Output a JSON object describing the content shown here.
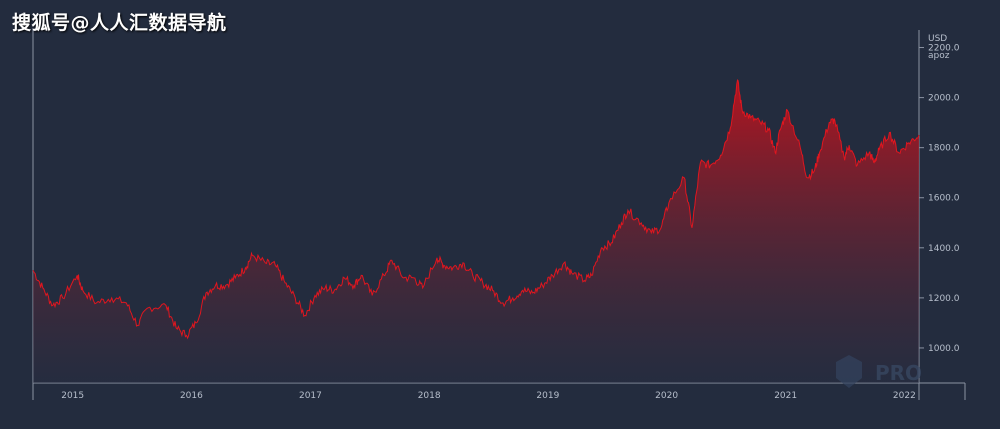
{
  "watermark": {
    "text": "搜狐号@人人汇数据导航"
  },
  "colors": {
    "background": "#232c3e",
    "line": "#e0161f",
    "fill_top": "#b5141f",
    "fill_bottom": "#2a2e42",
    "axis": "#8b93a3",
    "text": "#b7bfcc"
  },
  "chart_data": {
    "type": "area",
    "unit_line1": "USD",
    "unit_line2": "apoz",
    "y_ticks": [
      "1000.0",
      "1200.0",
      "1400.0",
      "1600.0",
      "1800.0",
      "2000.0",
      "2200.0"
    ],
    "ylim": [
      860,
      2270
    ],
    "x_tick_labels": [
      "2015",
      "2016",
      "2017",
      "2018",
      "2019",
      "2020",
      "2021",
      "2022"
    ],
    "xlim": [
      "2014-09-01",
      "2022-02-15"
    ],
    "grid": false,
    "series": [
      {
        "x": [
          "2014-09-01",
          "2014-10-01",
          "2014-11-01",
          "2014-12-01",
          "2015-01-15",
          "2015-02-01",
          "2015-03-15",
          "2015-05-01",
          "2015-06-15",
          "2015-07-20",
          "2015-08-20",
          "2015-10-15",
          "2015-11-15",
          "2015-12-17",
          "2016-01-15",
          "2016-02-15",
          "2016-03-15",
          "2016-04-15",
          "2016-05-15",
          "2016-06-15",
          "2016-07-06",
          "2016-08-15",
          "2016-09-15",
          "2016-10-15",
          "2016-11-15",
          "2016-12-15",
          "2017-01-15",
          "2017-02-15",
          "2017-03-15",
          "2017-04-15",
          "2017-05-15",
          "2017-06-06",
          "2017-07-10",
          "2017-08-15",
          "2017-09-08",
          "2017-10-15",
          "2017-11-15",
          "2017-12-12",
          "2018-01-25",
          "2018-02-15",
          "2018-03-15",
          "2018-04-15",
          "2018-05-15",
          "2018-06-15",
          "2018-07-15",
          "2018-08-16",
          "2018-09-15",
          "2018-10-15",
          "2018-11-15",
          "2018-12-15",
          "2019-01-15",
          "2019-02-20",
          "2019-03-15",
          "2019-04-23",
          "2019-05-15",
          "2019-06-15",
          "2019-07-15",
          "2019-08-15",
          "2019-09-04",
          "2019-10-15",
          "2019-11-15",
          "2019-12-15",
          "2020-01-08",
          "2020-02-24",
          "2020-03-19",
          "2020-04-14",
          "2020-05-15",
          "2020-06-15",
          "2020-07-15",
          "2020-08-06",
          "2020-08-20",
          "2020-09-15",
          "2020-10-15",
          "2020-11-10",
          "2020-11-30",
          "2020-12-15",
          "2021-01-06",
          "2021-02-15",
          "2021-03-08",
          "2021-03-31",
          "2021-04-15",
          "2021-05-15",
          "2021-06-01",
          "2021-06-30",
          "2021-07-15",
          "2021-08-09",
          "2021-09-15",
          "2021-09-30",
          "2021-10-15",
          "2021-11-16",
          "2021-12-15",
          "2022-01-15",
          "2022-02-15"
        ],
        "y": [
          1310,
          1240,
          1170,
          1200,
          1290,
          1230,
          1180,
          1200,
          1180,
          1090,
          1160,
          1170,
          1080,
          1050,
          1100,
          1220,
          1250,
          1250,
          1280,
          1320,
          1370,
          1340,
          1330,
          1260,
          1200,
          1130,
          1210,
          1240,
          1230,
          1280,
          1250,
          1290,
          1210,
          1290,
          1350,
          1280,
          1280,
          1240,
          1360,
          1330,
          1320,
          1340,
          1290,
          1260,
          1230,
          1180,
          1200,
          1230,
          1220,
          1250,
          1290,
          1340,
          1300,
          1270,
          1290,
          1400,
          1420,
          1500,
          1550,
          1500,
          1460,
          1480,
          1580,
          1680,
          1480,
          1740,
          1730,
          1770,
          1880,
          2070,
          1950,
          1920,
          1900,
          1870,
          1780,
          1870,
          1950,
          1800,
          1680,
          1710,
          1780,
          1900,
          1910,
          1760,
          1810,
          1730,
          1780,
          1740,
          1790,
          1860,
          1780,
          1820,
          1850
        ]
      }
    ]
  },
  "logo": {
    "text": "PRO"
  }
}
